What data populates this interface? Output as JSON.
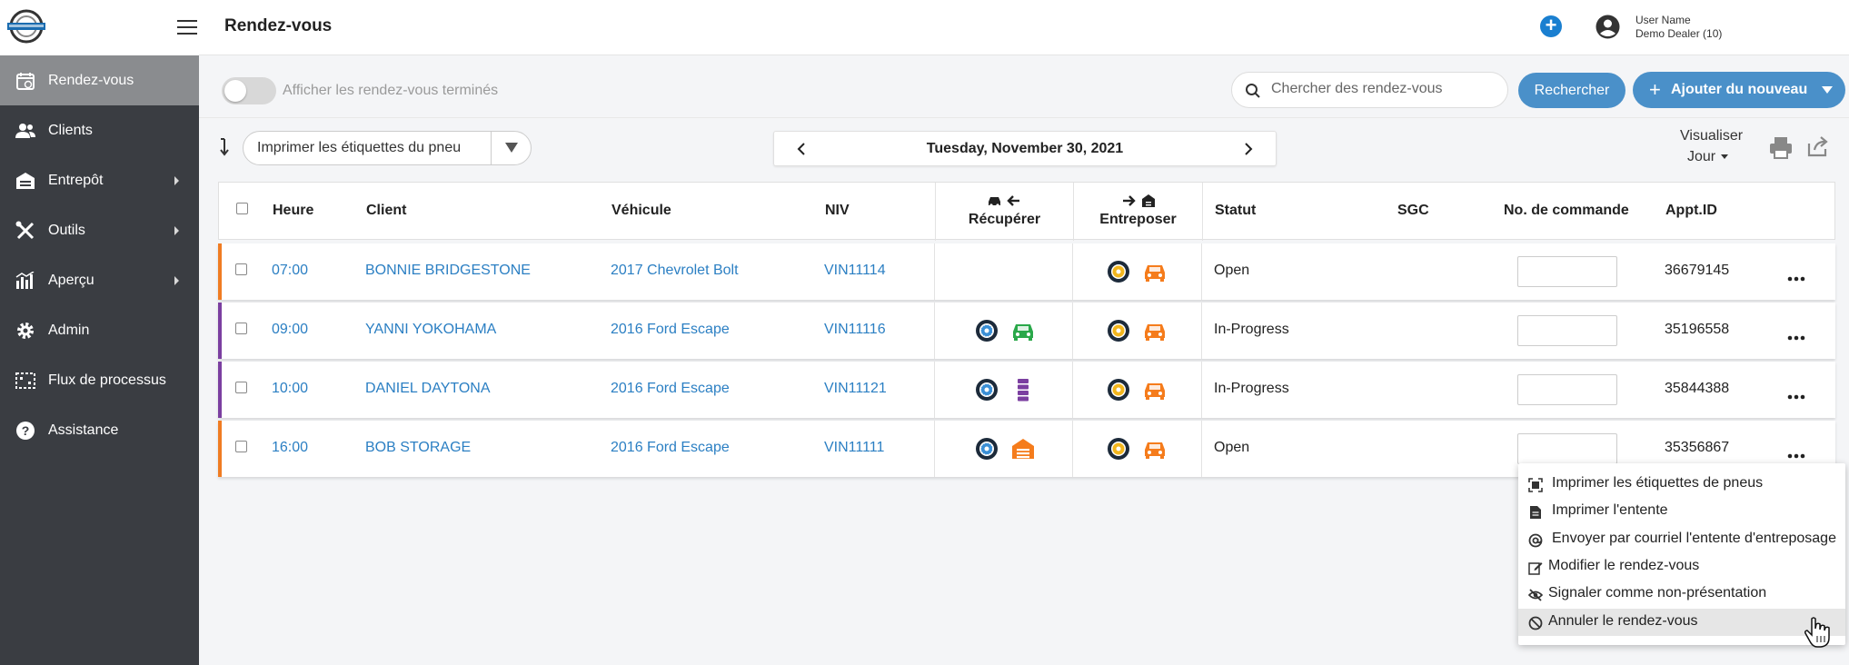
{
  "header": {
    "title": "Rendez-vous",
    "user_name": "User Name",
    "dealer": "Demo Dealer (10)"
  },
  "sidebar": {
    "items": [
      {
        "label": "Rendez-vous",
        "icon": "calendar-icon",
        "active": true,
        "submenu": false
      },
      {
        "label": "Clients",
        "icon": "users-icon",
        "active": false,
        "submenu": false
      },
      {
        "label": "Entrepôt",
        "icon": "warehouse-icon",
        "active": false,
        "submenu": true
      },
      {
        "label": "Outils",
        "icon": "tools-icon",
        "active": false,
        "submenu": true
      },
      {
        "label": "Aperçu",
        "icon": "chart-icon",
        "active": false,
        "submenu": true
      },
      {
        "label": "Admin",
        "icon": "gear-icon",
        "active": false,
        "submenu": false
      },
      {
        "label": "Flux de processus",
        "icon": "process-icon",
        "active": false,
        "submenu": false
      },
      {
        "label": "Assistance",
        "icon": "help-icon",
        "active": false,
        "submenu": false
      }
    ]
  },
  "filters": {
    "toggle_label": "Afficher les rendez-vous terminés",
    "toggle_on": false,
    "search_placeholder": "Chercher des rendez-vous",
    "search_button": "Rechercher",
    "add_button": "Ajouter du nouveau"
  },
  "toolbar": {
    "print_labels": "Imprimer les étiquettes du pneu",
    "date": "Tuesday, November 30, 2021",
    "view_label": "Visualiser",
    "view_value": "Jour"
  },
  "table": {
    "columns": {
      "time": "Heure",
      "client": "Client",
      "vehicle": "Véhicule",
      "vin": "NIV",
      "pickup": "Récupérer",
      "store": "Entreposer",
      "status": "Statut",
      "sgc": "SGC",
      "order": "No. de commande",
      "appt": "Appt.ID"
    },
    "rows": [
      {
        "time": "07:00",
        "client": "BONNIE BRIDGESTONE",
        "vehicle": "2017 Chevrolet Bolt",
        "vin": "VIN11114",
        "status": "Open",
        "appt": "36679145",
        "order": "",
        "bar_color": "#f07c22",
        "pickup": []
      },
      {
        "time": "09:00",
        "client": "YANNI YOKOHAMA",
        "vehicle": "2016 Ford Escape",
        "vin": "VIN11116",
        "status": "In-Progress",
        "appt": "35196558",
        "order": "",
        "bar_color": "#7b3fa0",
        "pickup": [
          "tire-blue-icon",
          "car-green-icon"
        ]
      },
      {
        "time": "10:00",
        "client": "DANIEL DAYTONA",
        "vehicle": "2016 Ford Escape",
        "vin": "VIN11121",
        "status": "In-Progress",
        "appt": "35844388",
        "order": "",
        "bar_color": "#7b3fa0",
        "pickup": [
          "tire-blue-icon",
          "rack-purple-icon"
        ]
      },
      {
        "time": "16:00",
        "client": "BOB STORAGE",
        "vehicle": "2016 Ford Escape",
        "vin": "VIN11111",
        "status": "Open",
        "appt": "35356867",
        "order": "",
        "bar_color": "#f07c22",
        "pickup": [
          "tire-blue-icon",
          "warehouse-orange-icon"
        ]
      }
    ]
  },
  "context_menu": {
    "items": [
      {
        "label": "Imprimer les étiquettes de pneus",
        "icon": "scan-icon"
      },
      {
        "label": "Imprimer l'entente",
        "icon": "document-icon"
      },
      {
        "label": "Envoyer par courriel l'entente d'entreposage",
        "icon": "at-icon"
      },
      {
        "label": "Modifier le rendez-vous",
        "icon": "edit-icon"
      },
      {
        "label": "Signaler comme non-présentation",
        "icon": "eye-slash-icon"
      },
      {
        "label": "Annuler le rendez-vous",
        "icon": "ban-icon"
      }
    ]
  }
}
